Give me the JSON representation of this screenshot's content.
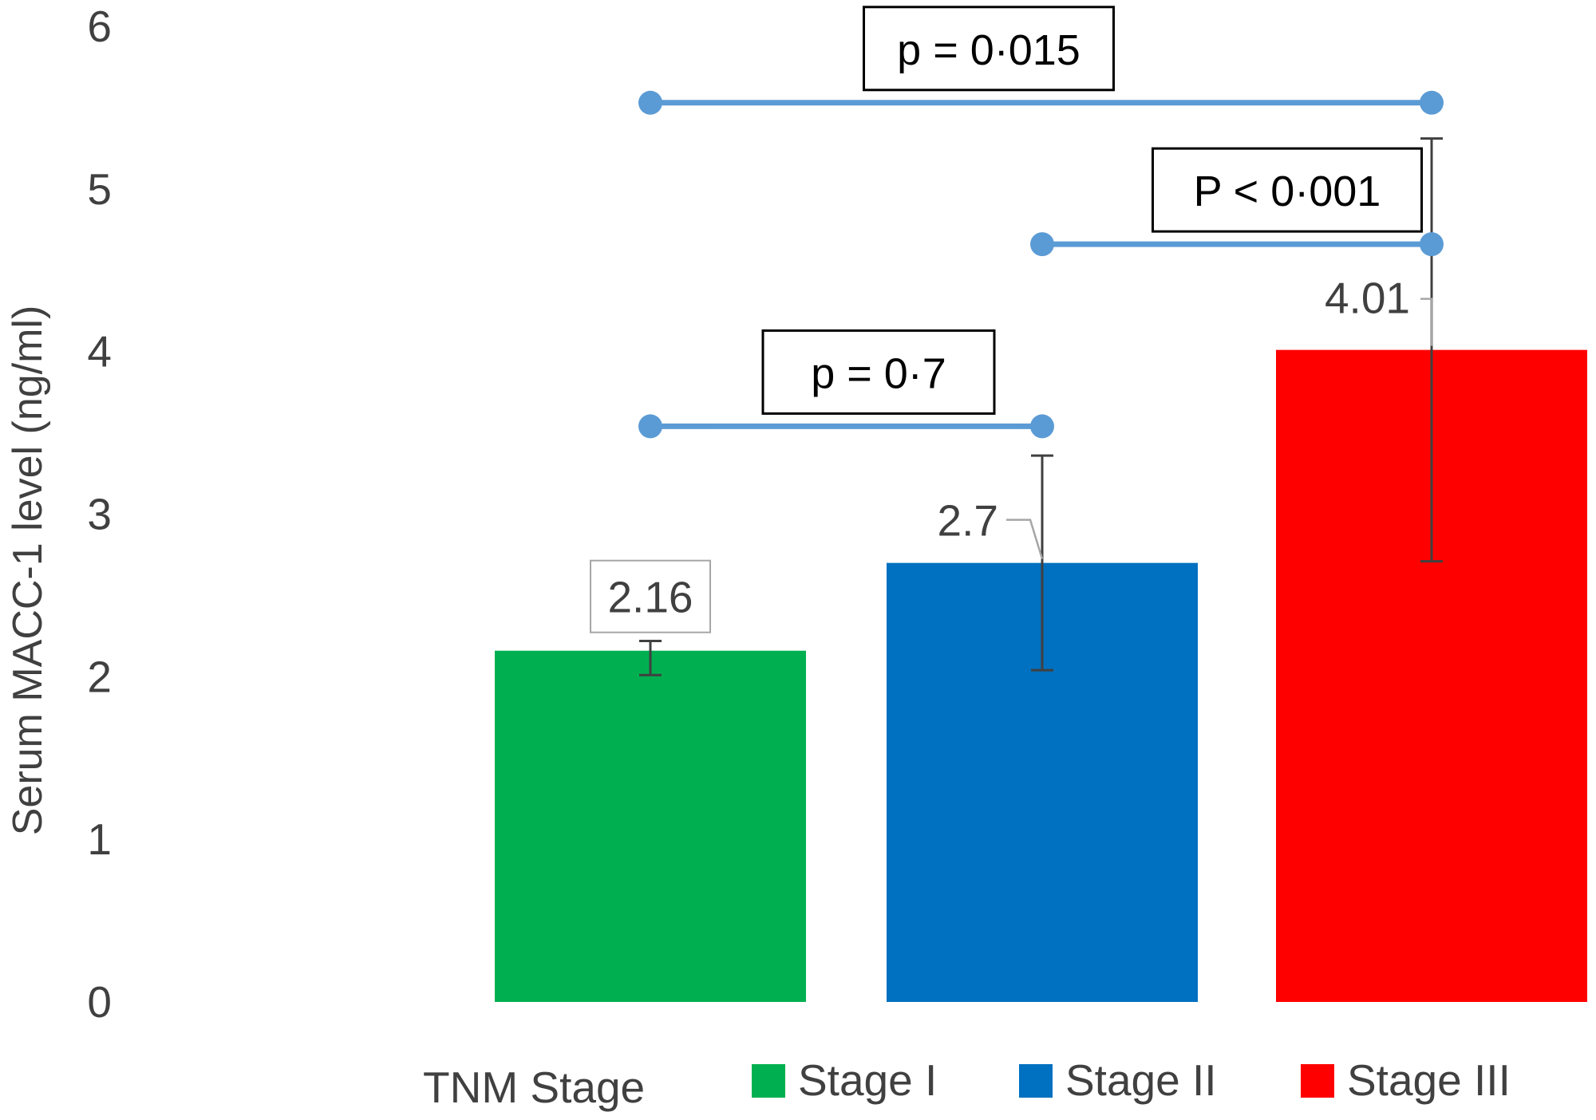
{
  "chart_data": {
    "type": "bar",
    "title": "",
    "xlabel": "",
    "ylabel": "Serum MACC-1 level (ng/ml)",
    "ylim": [
      0,
      6
    ],
    "yticks": [
      0,
      1,
      2,
      3,
      4,
      5,
      6
    ],
    "grid": false,
    "legend": {
      "position": "bottom",
      "title": "TNM Stage",
      "entries": [
        "Stage I",
        "Stage II",
        "Stage III"
      ]
    },
    "series": [
      {
        "name": "Stage I",
        "value": 2.16,
        "label": "2.16",
        "error": [
          2.01,
          2.22
        ],
        "color": "#00B050"
      },
      {
        "name": "Stage II",
        "value": 2.7,
        "label": "2.7",
        "error": [
          2.04,
          3.36
        ],
        "color": "#0070C0"
      },
      {
        "name": "Stage III",
        "value": 4.01,
        "label": "4.01",
        "error": [
          2.71,
          5.31
        ],
        "color": "#FF0000"
      }
    ],
    "comparisons": [
      {
        "from": "Stage I",
        "to": "Stage III",
        "y": 5.53,
        "label": "p = 0·015"
      },
      {
        "from": "Stage II",
        "to": "Stage III",
        "y": 4.66,
        "label": "P < 0·001"
      },
      {
        "from": "Stage I",
        "to": "Stage II",
        "y": 3.54,
        "label": "p = 0·7"
      }
    ],
    "comparison_color": "#5B9BD5"
  }
}
